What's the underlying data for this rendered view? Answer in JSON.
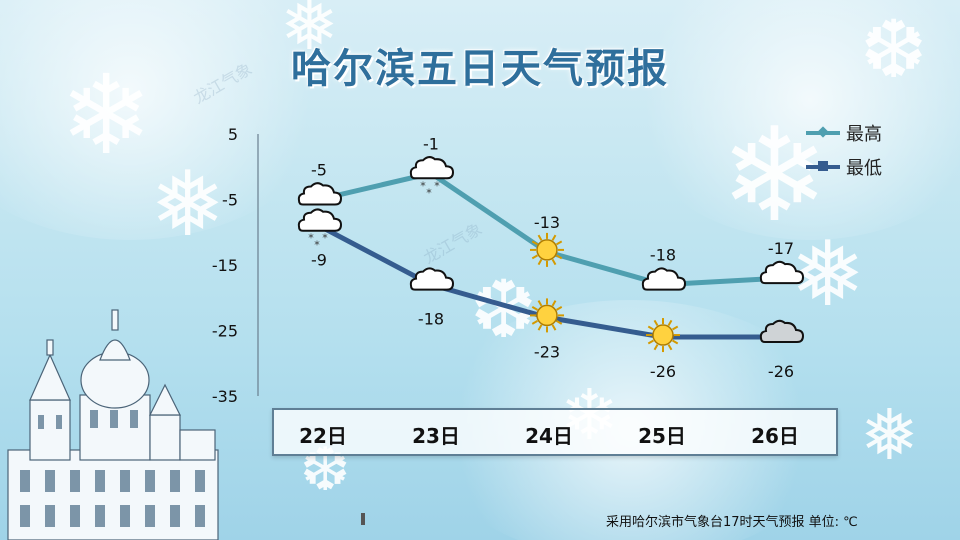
{
  "title": "哈尔滨五日天气预报",
  "footer": "采用哈尔滨市气象台17时天气预报 单位: ℃",
  "watermark": "龙江气象",
  "colors": {
    "high": "#4f9fb0",
    "low": "#355c8f",
    "title": "#2f6f9c"
  },
  "chart_data": {
    "type": "line",
    "title": "哈尔滨五日天气预报",
    "categories": [
      "22日",
      "23日",
      "24日",
      "25日",
      "26日"
    ],
    "ylim": [
      -35,
      5
    ],
    "yticks": [
      5,
      -5,
      -15,
      -25,
      -35
    ],
    "grid": false,
    "legend_position": "top-right",
    "series": [
      {
        "name": "最高",
        "values": [
          -5,
          -1,
          -13,
          -18,
          -17
        ],
        "color": "#4f9fb0",
        "marker": "diamond"
      },
      {
        "name": "最低",
        "values": [
          -9,
          -18,
          -23,
          -26,
          -26
        ],
        "color": "#355c8f",
        "marker": "square"
      }
    ],
    "weather_icons": {
      "最高": [
        "cloudy-icon",
        "snow-icon",
        "sunny-icon",
        "cloudy-icon",
        "cloudy-icon"
      ],
      "最低": [
        "snow-icon",
        "cloudy-icon",
        "sunny-icon",
        "sunny-icon",
        "overcast-icon"
      ]
    },
    "unit": "℃"
  }
}
